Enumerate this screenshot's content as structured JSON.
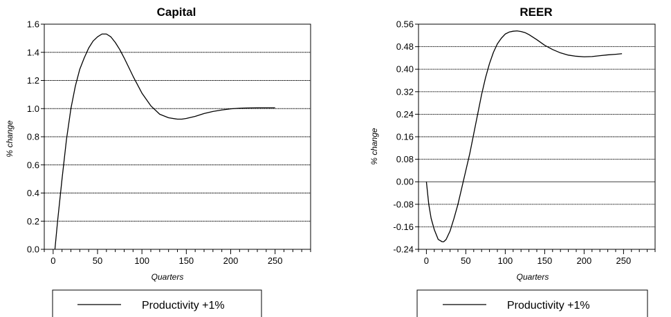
{
  "chart_data": [
    {
      "type": "line",
      "title": "Capital",
      "xlabel": "Quarters",
      "ylabel": "% change",
      "xlim": [
        -10,
        290
      ],
      "ylim": [
        0.0,
        1.6
      ],
      "x_ticks": [
        "0",
        "50",
        "100",
        "150",
        "200",
        "250"
      ],
      "y_ticks": [
        "0.0",
        "0.2",
        "0.4",
        "0.6",
        "0.8",
        "1.0",
        "1.2",
        "1.4",
        "1.6"
      ],
      "grid": "horizontal",
      "series": [
        {
          "name": "Productivity +1%",
          "x": [
            2,
            5,
            10,
            15,
            20,
            25,
            30,
            35,
            40,
            45,
            50,
            55,
            60,
            65,
            70,
            75,
            80,
            90,
            100,
            110,
            120,
            130,
            140,
            145,
            150,
            160,
            170,
            180,
            190,
            200,
            210,
            220,
            230,
            240,
            250
          ],
          "y": [
            0.0,
            0.2,
            0.5,
            0.78,
            1.0,
            1.16,
            1.28,
            1.36,
            1.43,
            1.48,
            1.51,
            1.53,
            1.53,
            1.51,
            1.47,
            1.42,
            1.36,
            1.23,
            1.11,
            1.02,
            0.96,
            0.935,
            0.925,
            0.925,
            0.93,
            0.945,
            0.965,
            0.98,
            0.99,
            0.998,
            1.003,
            1.005,
            1.006,
            1.006,
            1.006
          ]
        }
      ],
      "legend": {
        "position": "bottom",
        "entries": [
          "Productivity +1%"
        ]
      }
    },
    {
      "type": "line",
      "title": "REER",
      "xlabel": "Quarters",
      "ylabel": "% change",
      "xlim": [
        -10,
        290
      ],
      "ylim": [
        -0.24,
        0.56
      ],
      "x_ticks": [
        "0",
        "50",
        "100",
        "150",
        "200",
        "250"
      ],
      "y_ticks": [
        "-0.24",
        "-0.16",
        "-0.08",
        "0.00",
        "0.08",
        "0.16",
        "0.24",
        "0.32",
        "0.40",
        "0.48",
        "0.56"
      ],
      "grid": "horizontal",
      "series": [
        {
          "name": "Productivity +1%",
          "x": [
            0,
            3,
            6,
            10,
            15,
            20,
            22,
            25,
            30,
            35,
            40,
            45,
            50,
            55,
            60,
            65,
            70,
            75,
            80,
            85,
            90,
            95,
            100,
            105,
            110,
            115,
            120,
            125,
            130,
            140,
            150,
            160,
            170,
            180,
            190,
            200,
            210,
            220,
            230,
            240,
            248
          ],
          "y": [
            0.0,
            -0.08,
            -0.13,
            -0.17,
            -0.205,
            -0.213,
            -0.213,
            -0.205,
            -0.175,
            -0.13,
            -0.08,
            -0.02,
            0.04,
            0.1,
            0.17,
            0.24,
            0.31,
            0.37,
            0.42,
            0.46,
            0.49,
            0.51,
            0.525,
            0.532,
            0.535,
            0.536,
            0.534,
            0.53,
            0.523,
            0.505,
            0.485,
            0.47,
            0.458,
            0.45,
            0.446,
            0.444,
            0.445,
            0.448,
            0.451,
            0.453,
            0.455
          ]
        }
      ],
      "legend": {
        "position": "bottom",
        "entries": [
          "Productivity +1%"
        ]
      }
    }
  ]
}
